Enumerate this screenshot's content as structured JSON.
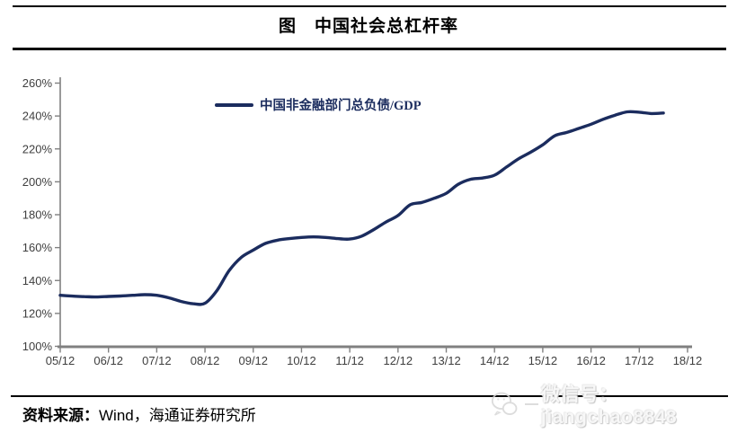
{
  "page": {
    "title": "图　中国社会总杠杆率"
  },
  "legend": {
    "label": "中国非金融部门总负债/GDP"
  },
  "footer": {
    "source_label": "资料来源：",
    "source_text": "Wind，海通证券研究所"
  },
  "watermark": {
    "icon": "wechat-icon",
    "text": "微信号：jiangchao8848"
  },
  "colors": {
    "series_line": "#1b2c5e",
    "axis": "#808080",
    "tick_label": "#3f3f3f",
    "rule": "#000000"
  },
  "chart_data": {
    "type": "line",
    "title": "中国社会总杠杆率",
    "xlabel": "",
    "ylabel": "",
    "ylim": [
      100,
      260
    ],
    "y_ticks": [
      100,
      120,
      140,
      160,
      180,
      200,
      220,
      240,
      260
    ],
    "y_tick_suffix": "%",
    "x_tick_labels": [
      "05/12",
      "06/12",
      "07/12",
      "08/12",
      "09/12",
      "10/12",
      "11/12",
      "12/12",
      "13/12",
      "14/12",
      "15/12",
      "16/12",
      "17/12",
      "18/12"
    ],
    "grid": false,
    "legend_position": "top-center",
    "series": [
      {
        "name": "中国非金融部门总负债/GDP",
        "points": [
          {
            "date": "2005-12",
            "value": 131
          },
          {
            "date": "2006-03",
            "value": 130.5
          },
          {
            "date": "2006-06",
            "value": 130.2
          },
          {
            "date": "2006-09",
            "value": 130
          },
          {
            "date": "2006-12",
            "value": 130.3
          },
          {
            "date": "2007-03",
            "value": 130.6
          },
          {
            "date": "2007-06",
            "value": 131
          },
          {
            "date": "2007-09",
            "value": 131.4
          },
          {
            "date": "2007-12",
            "value": 131
          },
          {
            "date": "2008-03",
            "value": 129.5
          },
          {
            "date": "2008-06",
            "value": 127.3
          },
          {
            "date": "2008-09",
            "value": 125.9
          },
          {
            "date": "2008-12",
            "value": 126.2
          },
          {
            "date": "2009-03",
            "value": 134
          },
          {
            "date": "2009-06",
            "value": 146
          },
          {
            "date": "2009-09",
            "value": 154
          },
          {
            "date": "2009-12",
            "value": 158.5
          },
          {
            "date": "2010-03",
            "value": 162.5
          },
          {
            "date": "2010-06",
            "value": 164.5
          },
          {
            "date": "2010-09",
            "value": 165.5
          },
          {
            "date": "2010-12",
            "value": 166.2
          },
          {
            "date": "2011-03",
            "value": 166.5
          },
          {
            "date": "2011-06",
            "value": 166.2
          },
          {
            "date": "2011-09",
            "value": 165.5
          },
          {
            "date": "2011-12",
            "value": 165.2
          },
          {
            "date": "2012-03",
            "value": 167
          },
          {
            "date": "2012-06",
            "value": 171
          },
          {
            "date": "2012-09",
            "value": 175.5
          },
          {
            "date": "2012-12",
            "value": 179.5
          },
          {
            "date": "2013-03",
            "value": 186
          },
          {
            "date": "2013-06",
            "value": 187.5
          },
          {
            "date": "2013-09",
            "value": 190
          },
          {
            "date": "2013-12",
            "value": 193
          },
          {
            "date": "2014-03",
            "value": 198.5
          },
          {
            "date": "2014-06",
            "value": 201.5
          },
          {
            "date": "2014-09",
            "value": 202.3
          },
          {
            "date": "2014-12",
            "value": 204
          },
          {
            "date": "2015-03",
            "value": 209
          },
          {
            "date": "2015-06",
            "value": 214
          },
          {
            "date": "2015-09",
            "value": 218
          },
          {
            "date": "2015-12",
            "value": 222.5
          },
          {
            "date": "2016-03",
            "value": 228
          },
          {
            "date": "2016-06",
            "value": 230
          },
          {
            "date": "2016-09",
            "value": 232.5
          },
          {
            "date": "2016-12",
            "value": 235
          },
          {
            "date": "2017-03",
            "value": 238
          },
          {
            "date": "2017-06",
            "value": 240.5
          },
          {
            "date": "2017-09",
            "value": 242.5
          },
          {
            "date": "2017-12",
            "value": 242.3
          },
          {
            "date": "2018-03",
            "value": 241.5
          },
          {
            "date": "2018-06",
            "value": 241.8
          }
        ]
      }
    ]
  }
}
